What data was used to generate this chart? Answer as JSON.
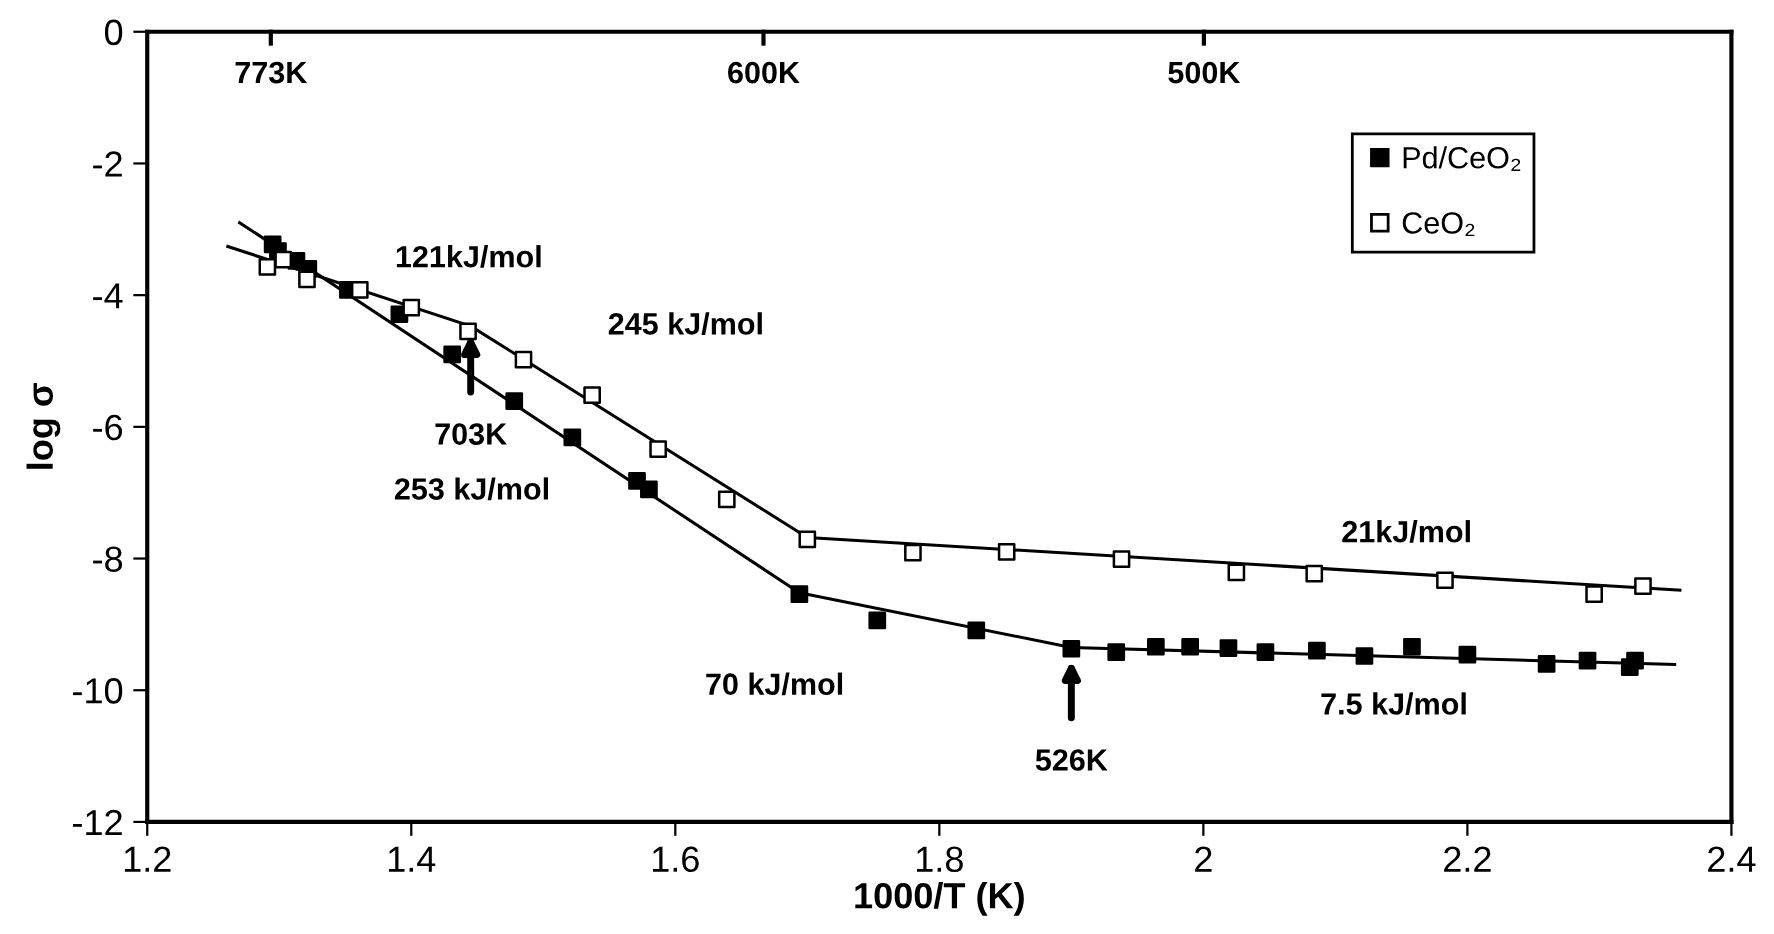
{
  "chart_data": {
    "type": "scatter",
    "xlabel": "1000/T (K)",
    "ylabel": "log σ",
    "xlim": [
      1.2,
      2.4
    ],
    "xticks": [
      1.2,
      1.4,
      1.6,
      1.8,
      2,
      2.2,
      2.4
    ],
    "ylim": [
      -12,
      0
    ],
    "yticks": [
      -12,
      -10,
      -8,
      -6,
      -4,
      -2,
      0
    ],
    "grid": false,
    "legend": "top right",
    "series": [
      {
        "name": "Pd/CeO₂",
        "marker": "square",
        "color": "#000000",
        "x": [
          1.295,
          1.299,
          1.313,
          1.322,
          1.352,
          1.391,
          1.431,
          1.478,
          1.522,
          1.571,
          1.58,
          1.694,
          1.753,
          1.828,
          1.9,
          1.934,
          1.964,
          1.99,
          2.019,
          2.047,
          2.086,
          2.122,
          2.158,
          2.2,
          2.26,
          2.291,
          2.323,
          2.327
        ],
        "values": [
          -3.23,
          -3.33,
          -3.48,
          -3.6,
          -3.92,
          -4.29,
          -4.9,
          -5.61,
          -6.16,
          -6.82,
          -6.95,
          -8.54,
          -8.94,
          -9.09,
          -9.37,
          -9.42,
          -9.34,
          -9.34,
          -9.36,
          -9.42,
          -9.4,
          -9.48,
          -9.34,
          -9.46,
          -9.6,
          -9.55,
          -9.65,
          -9.55
        ]
      },
      {
        "name": "CeO₂",
        "marker": "square",
        "color": "#ffffff",
        "x": [
          1.291,
          1.303,
          1.321,
          1.361,
          1.4,
          1.443,
          1.485,
          1.537,
          1.587,
          1.639,
          1.7,
          1.78,
          1.851,
          1.938,
          2.025,
          2.084,
          2.183,
          2.296,
          2.333
        ],
        "values": [
          -3.57,
          -3.46,
          -3.76,
          -3.92,
          -4.19,
          -4.55,
          -4.98,
          -5.52,
          -6.34,
          -7.1,
          -7.71,
          -7.91,
          -7.9,
          -8.01,
          -8.21,
          -8.23,
          -8.33,
          -8.54,
          -8.42
        ]
      },
      {
        "type": "line",
        "color": "#000000",
        "x": [
          1.27,
          1.694,
          1.9,
          2.357
        ],
        "values": [
          -2.9,
          -8.52,
          -9.35,
          -9.61
        ]
      },
      {
        "type": "line",
        "color": "#000000",
        "x": [
          1.261,
          1.445,
          1.7,
          2.361
        ],
        "values": [
          -3.26,
          -4.47,
          -7.68,
          -8.48
        ]
      }
    ],
    "annotations": [
      "121kJ/mol",
      "245 kJ/mol",
      {
        "text": "703K",
        "x": 1.445,
        "y": -4.6
      },
      "253 kJ/mol",
      "70 kJ/mol",
      {
        "text": "526K",
        "x": 1.9,
        "y": -9.55
      },
      "21kJ/mol",
      "7.5 kJ/mol",
      "773K",
      "600K",
      "500K"
    ]
  }
}
